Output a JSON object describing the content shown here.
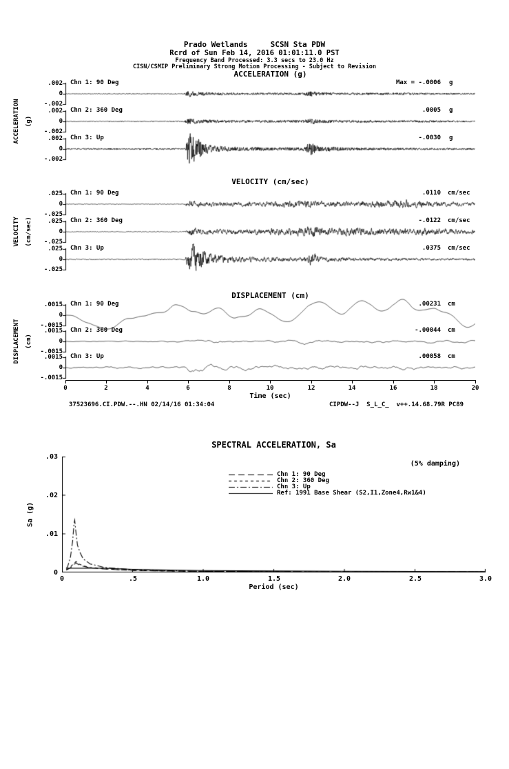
{
  "header": {
    "station_line": "Prado Wetlands     SCSN Sta PDW",
    "record_line": "Rcrd of Sun Feb 14, 2016 01:01:11.0 PST",
    "band_line": "Frequency Band Processed: 3.3 secs to 23.0 Hz",
    "notice_line": "CISN/CSMIP Preliminary Strong Motion Processing - Subject to Revision"
  },
  "footer": {
    "left": "37523696.CI.PDW.--.HN 02/14/16 01:34:04",
    "right": "CIPDW--J  S_L_C_  v++.14.68.79R PC89"
  },
  "time_axis": {
    "label": "Time (sec)",
    "range": [
      0,
      20
    ],
    "tick_labels": [
      "0",
      "2",
      "4",
      "6",
      "8",
      "10",
      "12",
      "14",
      "16",
      "18",
      "20"
    ]
  },
  "colors": {
    "ink": "#000000",
    "background": "#ffffff"
  },
  "chart_data": [
    {
      "type": "line",
      "group": "time-history",
      "title": "ACCELERATION (g)",
      "side_label": "ACCELERATION",
      "side_unit": "(g)",
      "xlim": [
        0,
        20
      ],
      "ylim": [
        -0.002,
        0.002
      ],
      "ytick_labels": [
        ".002",
        "0",
        "-.002"
      ],
      "channels": [
        {
          "label": "Chn 1: 90 Deg",
          "peak_text": "Max = -.0006",
          "unit": "g",
          "peak_value": -0.0006,
          "seed": 11,
          "alpha": 0.1,
          "passes": 1,
          "envelope": [
            [
              0,
              0.1
            ],
            [
              5.8,
              0.12
            ],
            [
              6,
              1
            ],
            [
              6.4,
              0.6
            ],
            [
              7.2,
              0.4
            ],
            [
              9,
              0.32
            ],
            [
              11.6,
              0.32
            ],
            [
              11.9,
              0.8
            ],
            [
              12.4,
              0.45
            ],
            [
              13.5,
              0.35
            ],
            [
              15,
              0.3
            ],
            [
              16.5,
              0.34
            ],
            [
              18,
              0.26
            ],
            [
              20,
              0.2
            ]
          ]
        },
        {
          "label": "Chn 2: 360 Deg",
          "peak_text": ".0005",
          "unit": "g",
          "peak_value": 0.0005,
          "seed": 22,
          "alpha": 0.1,
          "passes": 1,
          "envelope": [
            [
              0,
              0.1
            ],
            [
              5.8,
              0.12
            ],
            [
              6,
              1
            ],
            [
              6.5,
              0.55
            ],
            [
              7.5,
              0.4
            ],
            [
              9.5,
              0.35
            ],
            [
              11.6,
              0.35
            ],
            [
              11.95,
              0.85
            ],
            [
              12.5,
              0.45
            ],
            [
              14,
              0.35
            ],
            [
              15.5,
              0.3
            ],
            [
              17,
              0.32
            ],
            [
              20,
              0.2
            ]
          ]
        },
        {
          "label": "Chn 3: Up",
          "peak_text": "-.0030",
          "unit": "g",
          "peak_value": -0.003,
          "seed": 33,
          "alpha": 0.1,
          "passes": 1,
          "envelope": [
            [
              0,
              0.04
            ],
            [
              5.85,
              0.05
            ],
            [
              6,
              1
            ],
            [
              6.3,
              0.85
            ],
            [
              6.7,
              0.4
            ],
            [
              7.2,
              0.2
            ],
            [
              8.5,
              0.12
            ],
            [
              11.6,
              0.1
            ],
            [
              11.9,
              0.42
            ],
            [
              12.4,
              0.16
            ],
            [
              14,
              0.09
            ],
            [
              16,
              0.07
            ],
            [
              20,
              0.05
            ]
          ]
        }
      ]
    },
    {
      "type": "line",
      "group": "time-history",
      "title": "VELOCITY (cm/sec)",
      "side_label": "VELOCITY",
      "side_unit": "(cm/sec)",
      "xlim": [
        0,
        20
      ],
      "ylim": [
        -0.025,
        0.025
      ],
      "ytick_labels": [
        ".025",
        "0",
        "-.025"
      ],
      "channels": [
        {
          "label": "Chn 1: 90 Deg",
          "peak_text": ".0110",
          "unit": "cm/sec",
          "peak_value": 0.011,
          "seed": 44,
          "alpha": 0.5,
          "passes": 1,
          "envelope": [
            [
              0,
              0.07
            ],
            [
              5.8,
              0.09
            ],
            [
              6.1,
              0.75
            ],
            [
              6.8,
              0.5
            ],
            [
              8.5,
              0.45
            ],
            [
              10,
              0.55
            ],
            [
              11.9,
              0.9
            ],
            [
              12.8,
              0.6
            ],
            [
              14,
              0.55
            ],
            [
              15.5,
              0.7
            ],
            [
              16.5,
              1
            ],
            [
              17.5,
              0.6
            ],
            [
              18.5,
              0.55
            ],
            [
              20,
              0.4
            ]
          ]
        },
        {
          "label": "Chn 2: 360 Deg",
          "peak_text": "-.0122",
          "unit": "cm/sec",
          "peak_value": -0.0122,
          "seed": 55,
          "alpha": 0.5,
          "passes": 1,
          "envelope": [
            [
              0,
              0.06
            ],
            [
              5.8,
              0.08
            ],
            [
              6.1,
              0.7
            ],
            [
              7,
              0.5
            ],
            [
              9,
              0.45
            ],
            [
              11.5,
              0.7
            ],
            [
              12.1,
              1
            ],
            [
              13,
              0.6
            ],
            [
              14.5,
              0.65
            ],
            [
              16,
              0.55
            ],
            [
              17.5,
              0.6
            ],
            [
              19,
              0.45
            ],
            [
              20,
              0.4
            ]
          ]
        },
        {
          "label": "Chn 3: Up",
          "peak_text": ".0375",
          "unit": "cm/sec",
          "peak_value": 0.0375,
          "seed": 66,
          "alpha": 0.45,
          "passes": 1,
          "envelope": [
            [
              0,
              0.03
            ],
            [
              5.85,
              0.04
            ],
            [
              6.05,
              1
            ],
            [
              6.5,
              0.85
            ],
            [
              7,
              0.4
            ],
            [
              8,
              0.22
            ],
            [
              9.5,
              0.16
            ],
            [
              11.6,
              0.14
            ],
            [
              11.95,
              0.4
            ],
            [
              12.6,
              0.18
            ],
            [
              14,
              0.12
            ],
            [
              16,
              0.1
            ],
            [
              20,
              0.07
            ]
          ]
        }
      ]
    },
    {
      "type": "line",
      "group": "time-history",
      "title": "DISPLACEMENT (cm)",
      "side_label": "DISPLACEMENT",
      "side_unit": "(cm)",
      "xlim": [
        0,
        20
      ],
      "ylim": [
        -0.0015,
        0.0015
      ],
      "ytick_labels": [
        ".0015",
        "0",
        "-.0015"
      ],
      "channels": [
        {
          "label": "Chn 1: 90 Deg",
          "peak_text": ".00231",
          "unit": "cm",
          "peak_value": 0.00231,
          "seed": 77,
          "alpha": 0.97,
          "passes": 3,
          "envelope": [
            [
              0,
              0.4
            ],
            [
              1.5,
              0.55
            ],
            [
              3,
              0.45
            ],
            [
              5,
              0.55
            ],
            [
              6.5,
              0.6
            ],
            [
              8,
              0.8
            ],
            [
              9.3,
              1
            ],
            [
              10.5,
              0.7
            ],
            [
              12,
              0.5
            ],
            [
              13.5,
              0.65
            ],
            [
              15,
              0.85
            ],
            [
              16.5,
              0.95
            ],
            [
              17.8,
              1
            ],
            [
              19,
              0.8
            ],
            [
              20,
              0.65
            ]
          ]
        },
        {
          "label": "Chn 2: 360 Deg",
          "peak_text": "-.00044",
          "unit": "cm",
          "peak_value": -0.00044,
          "seed": 88,
          "alpha": 0.9,
          "passes": 2,
          "envelope": [
            [
              0,
              0.3
            ],
            [
              5.5,
              0.35
            ],
            [
              7,
              0.8
            ],
            [
              9,
              0.6
            ],
            [
              11,
              0.7
            ],
            [
              12,
              1
            ],
            [
              13.5,
              0.7
            ],
            [
              15,
              0.8
            ],
            [
              17,
              0.6
            ],
            [
              19,
              0.55
            ],
            [
              20,
              0.5
            ]
          ]
        },
        {
          "label": "Chn 3: Up",
          "peak_text": ".00058",
          "unit": "cm",
          "peak_value": 0.00058,
          "seed": 99,
          "alpha": 0.88,
          "passes": 2,
          "envelope": [
            [
              0,
              0.18
            ],
            [
              5.85,
              0.22
            ],
            [
              6.15,
              1
            ],
            [
              7,
              0.6
            ],
            [
              8.5,
              0.4
            ],
            [
              10,
              0.35
            ],
            [
              11.9,
              0.55
            ],
            [
              13,
              0.4
            ],
            [
              15,
              0.35
            ],
            [
              17,
              0.4
            ],
            [
              19,
              0.3
            ],
            [
              20,
              0.28
            ]
          ]
        }
      ]
    },
    {
      "type": "line",
      "group": "response-spectrum",
      "title": "SPECTRAL ACCELERATION, Sa",
      "damping_note": "(5% damping)",
      "xlabel": "Period (sec)",
      "ylabel": "Sa (g)",
      "xlim": [
        0,
        3
      ],
      "ylim": [
        0,
        0.03
      ],
      "xtick_values": [
        0,
        0.5,
        1.0,
        1.5,
        2.0,
        2.5,
        3.0
      ],
      "xtick_labels": [
        "0",
        ".5",
        "1.0",
        "1.5",
        "2.0",
        "2.5",
        "3.0"
      ],
      "ytick_values": [
        0,
        0.01,
        0.02,
        0.03
      ],
      "ytick_labels": [
        "0",
        ".01",
        ".02",
        ".03"
      ],
      "legend_position": "top-center-inside",
      "series": [
        {
          "name": "Chn 1: 90 Deg",
          "line_style": "longdash",
          "points": [
            [
              0.03,
              0.0006
            ],
            [
              0.04,
              0.0008
            ],
            [
              0.06,
              0.0012
            ],
            [
              0.08,
              0.002
            ],
            [
              0.1,
              0.0024
            ],
            [
              0.12,
              0.002
            ],
            [
              0.15,
              0.0016
            ],
            [
              0.2,
              0.0012
            ],
            [
              0.3,
              0.0009
            ],
            [
              0.4,
              0.0007
            ],
            [
              0.5,
              0.0005
            ],
            [
              0.7,
              0.0004
            ],
            [
              1,
              0.0003
            ],
            [
              1.5,
              0.0002
            ],
            [
              2,
              0.00015
            ],
            [
              3,
              0.0001
            ]
          ]
        },
        {
          "name": "Chn 2: 360 Deg",
          "line_style": "dash",
          "points": [
            [
              0.03,
              0.0007
            ],
            [
              0.04,
              0.0009
            ],
            [
              0.06,
              0.0014
            ],
            [
              0.08,
              0.0022
            ],
            [
              0.1,
              0.0028
            ],
            [
              0.12,
              0.0022
            ],
            [
              0.15,
              0.0017
            ],
            [
              0.2,
              0.0013
            ],
            [
              0.3,
              0.001
            ],
            [
              0.4,
              0.0007
            ],
            [
              0.5,
              0.0006
            ],
            [
              0.7,
              0.0004
            ],
            [
              1,
              0.0003
            ],
            [
              1.5,
              0.0002
            ],
            [
              2,
              0.00015
            ],
            [
              3,
              0.0001
            ]
          ]
        },
        {
          "name": "Chn 3: Up",
          "line_style": "dashdot",
          "points": [
            [
              0.03,
              0.001
            ],
            [
              0.04,
              0.0015
            ],
            [
              0.06,
              0.004
            ],
            [
              0.075,
              0.008
            ],
            [
              0.085,
              0.0125
            ],
            [
              0.09,
              0.0135
            ],
            [
              0.1,
              0.01
            ],
            [
              0.11,
              0.007
            ],
            [
              0.13,
              0.005
            ],
            [
              0.15,
              0.0035
            ],
            [
              0.2,
              0.0022
            ],
            [
              0.3,
              0.0013
            ],
            [
              0.5,
              0.0007
            ],
            [
              0.7,
              0.0005
            ],
            [
              1,
              0.0003
            ],
            [
              1.5,
              0.0002
            ],
            [
              2,
              0.00012
            ],
            [
              3,
              0.0001
            ]
          ]
        },
        {
          "name": "Ref: 1991 Base Shear (S2,I1,Zone4,Rw1&4)",
          "line_style": "solid",
          "points": [
            [
              0.03,
              0.0011
            ],
            [
              0.3,
              0.0011
            ],
            [
              0.5,
              0.0008
            ],
            [
              0.7,
              0.00065
            ],
            [
              1,
              0.0005
            ],
            [
              1.5,
              0.00038
            ],
            [
              2,
              0.0003
            ],
            [
              3,
              0.00022
            ]
          ]
        }
      ]
    }
  ]
}
